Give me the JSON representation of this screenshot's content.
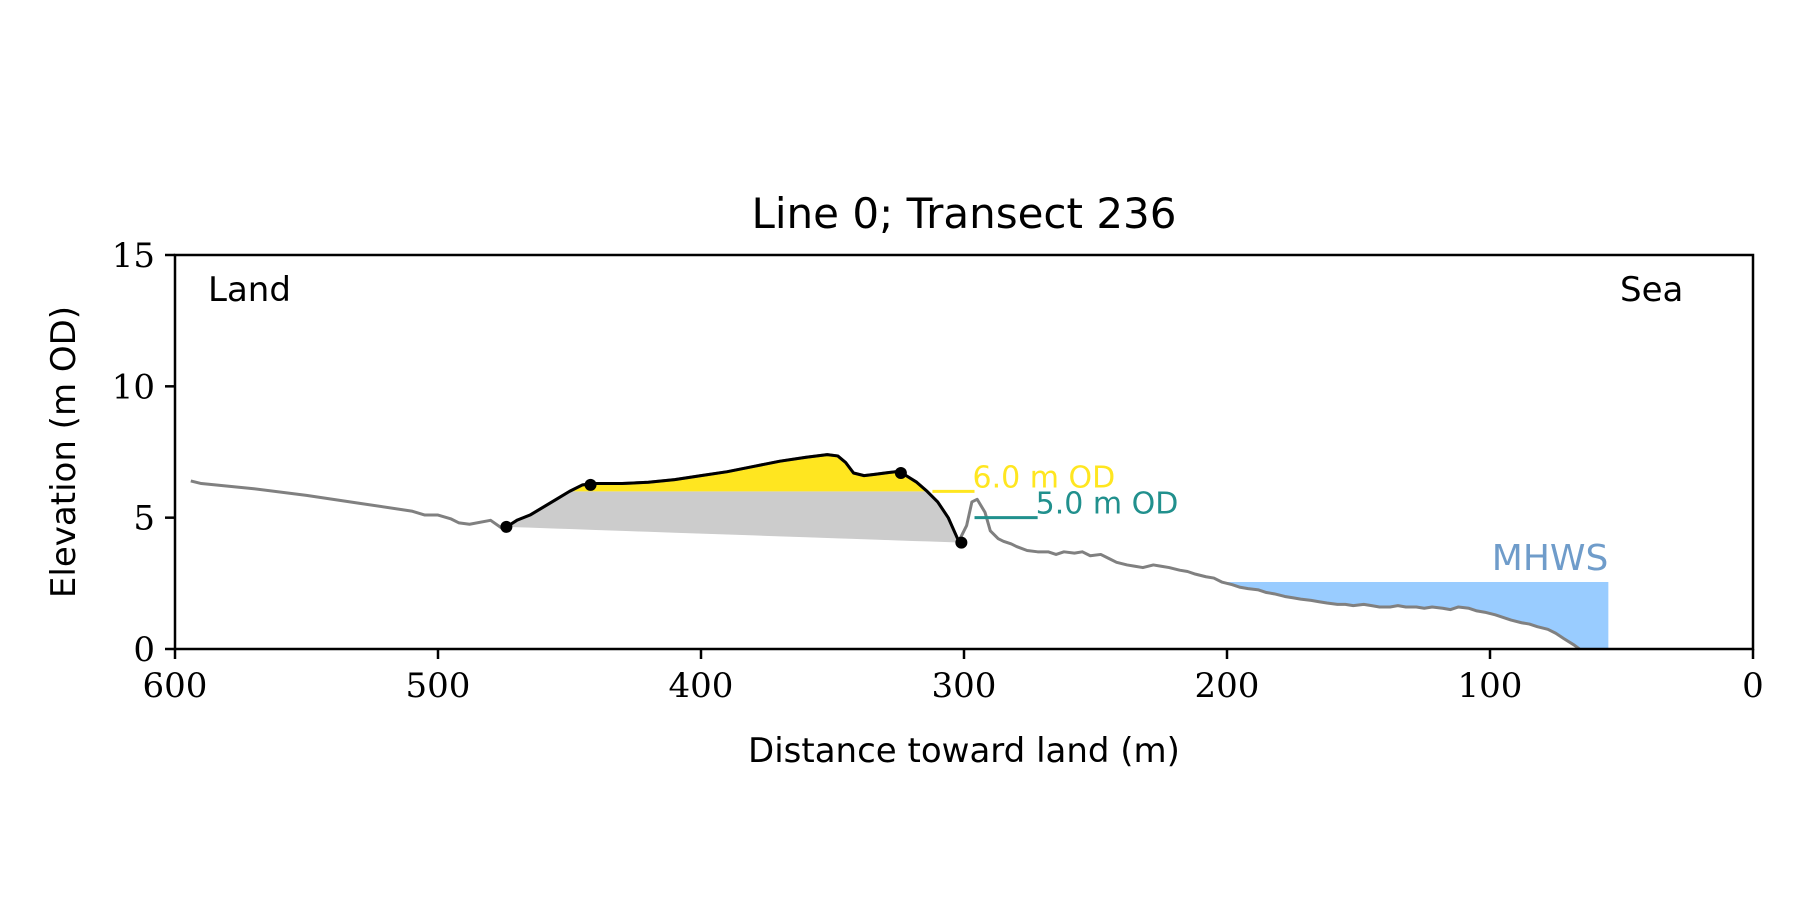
{
  "chart_data": {
    "type": "area",
    "title": "Line 0; Transect 236",
    "xlabel": "Distance toward land (m)",
    "ylabel": "Elevation (m OD)",
    "xlim": [
      600,
      0
    ],
    "ylim": [
      0,
      15
    ],
    "xticks": [
      600,
      500,
      400,
      300,
      200,
      100,
      0
    ],
    "yticks": [
      0,
      5,
      10,
      15
    ],
    "grid": false,
    "annotations": {
      "land": "Land",
      "sea": "Sea"
    },
    "profile": {
      "color": "#808080",
      "x": [
        594,
        590,
        570,
        550,
        530,
        510,
        505,
        500,
        495,
        492,
        488,
        480,
        475,
        470,
        465,
        460,
        455,
        450,
        445,
        440,
        430,
        420,
        410,
        400,
        390,
        380,
        370,
        360,
        352,
        348,
        345,
        342,
        338,
        334,
        330,
        326,
        322,
        318,
        314,
        310,
        306,
        302,
        299,
        297,
        295,
        292,
        290,
        287,
        285,
        282,
        280,
        276,
        272,
        268,
        265,
        262,
        258,
        255,
        252,
        248,
        245,
        242,
        238,
        235,
        232,
        228,
        225,
        222,
        218,
        215,
        212,
        208,
        205,
        202,
        198,
        195,
        192,
        188,
        185,
        182,
        178,
        175,
        172,
        168,
        165,
        162,
        158,
        155,
        152,
        148,
        145,
        142,
        138,
        135,
        132,
        128,
        125,
        122,
        118,
        115,
        112,
        108,
        105,
        102,
        98,
        95,
        92,
        88,
        85,
        82,
        78,
        75,
        72,
        68,
        66
      ],
      "y": [
        6.4,
        6.3,
        6.1,
        5.85,
        5.55,
        5.25,
        5.1,
        5.1,
        4.95,
        4.8,
        4.75,
        4.9,
        4.55,
        4.9,
        5.1,
        5.4,
        5.7,
        6.0,
        6.25,
        6.3,
        6.3,
        6.35,
        6.45,
        6.6,
        6.75,
        6.95,
        7.15,
        7.3,
        7.4,
        7.35,
        7.1,
        6.7,
        6.6,
        6.65,
        6.7,
        6.75,
        6.6,
        6.35,
        6.0,
        5.6,
        5.0,
        4.1,
        4.7,
        5.6,
        5.7,
        5.2,
        4.5,
        4.2,
        4.1,
        4.0,
        3.9,
        3.75,
        3.7,
        3.7,
        3.6,
        3.7,
        3.65,
        3.7,
        3.55,
        3.6,
        3.45,
        3.3,
        3.2,
        3.15,
        3.1,
        3.2,
        3.15,
        3.1,
        3.0,
        2.95,
        2.85,
        2.75,
        2.7,
        2.55,
        2.45,
        2.35,
        2.3,
        2.25,
        2.15,
        2.1,
        2.0,
        1.95,
        1.9,
        1.85,
        1.8,
        1.75,
        1.7,
        1.7,
        1.65,
        1.7,
        1.65,
        1.6,
        1.6,
        1.65,
        1.6,
        1.6,
        1.55,
        1.6,
        1.55,
        1.5,
        1.6,
        1.55,
        1.45,
        1.4,
        1.3,
        1.2,
        1.1,
        1.0,
        0.95,
        0.85,
        0.75,
        0.6,
        0.4,
        0.15,
        0.0
      ]
    },
    "dune_section": {
      "x_start": 474,
      "x_end": 301,
      "points": [
        {
          "x": 474,
          "y": 4.65
        },
        {
          "x": 442,
          "y": 6.25
        },
        {
          "x": 324,
          "y": 6.7
        },
        {
          "x": 301,
          "y": 4.05
        }
      ],
      "volume_above_6_color": "#ffe620",
      "volume_below_6_color": "#cccccc",
      "line_color": "#000000"
    },
    "levels": [
      {
        "label": "6.0 m OD",
        "value": 6.0,
        "x_from": 312,
        "x_to": 296,
        "color": "#ffe620"
      },
      {
        "label": "5.0 m OD",
        "value": 5.0,
        "x_from": 296,
        "x_to": 272,
        "color": "#21908d"
      }
    ],
    "mhws": {
      "label": "MHWS",
      "value": 2.55,
      "x_from": 202,
      "x_to": 55,
      "fill_color": "#99ccff",
      "label_color": "#6f9cca"
    }
  }
}
